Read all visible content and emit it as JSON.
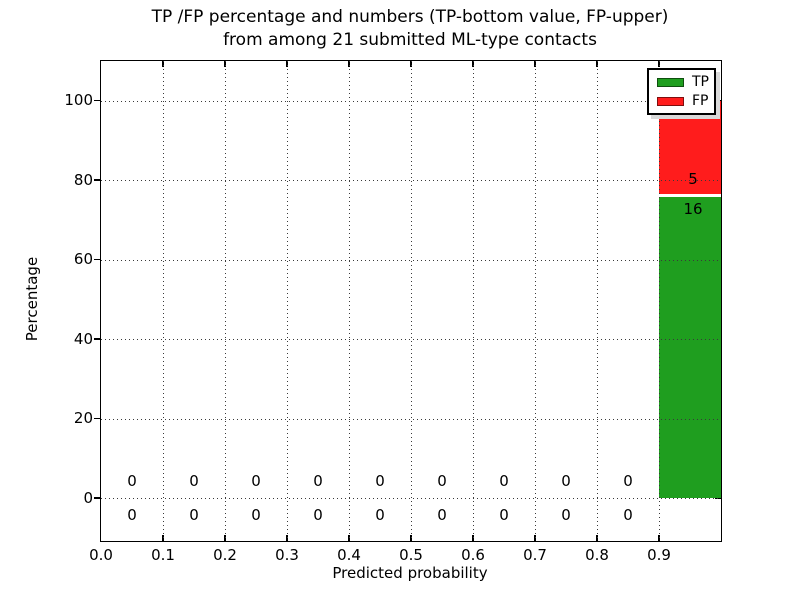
{
  "title": {
    "line1": "TP /FP percentage and numbers (TP-bottom value, FP-upper)",
    "line2": "from among 21 submitted ML-type contacts"
  },
  "axes": {
    "xlabel": "Predicted probability",
    "ylabel": "Percentage",
    "xlim": [
      0.0,
      1.0
    ],
    "ylim": [
      -10.8,
      110.0
    ],
    "xtick_values": [
      0.0,
      0.1,
      0.2,
      0.3,
      0.4,
      0.5,
      0.6,
      0.7,
      0.8,
      0.9
    ],
    "xtick_labels": [
      "0.0",
      "0.1",
      "0.2",
      "0.3",
      "0.4",
      "0.5",
      "0.6",
      "0.7",
      "0.8",
      "0.9"
    ],
    "ytick_values": [
      0,
      20,
      40,
      60,
      80,
      100
    ],
    "ytick_labels": [
      "0",
      "20",
      "40",
      "60",
      "80",
      "100"
    ],
    "grid_style": "dotted"
  },
  "legend": {
    "position": "upper-right",
    "items": [
      {
        "label": "TP",
        "color": "#1f9e1f"
      },
      {
        "label": "FP",
        "color": "#ff1c1c"
      }
    ]
  },
  "chart_data": {
    "type": "bar",
    "stacked": true,
    "title": "TP /FP percentage and numbers (TP-bottom value, FP-upper) from among 21 submitted ML-type contacts",
    "xlabel": "Predicted probability",
    "ylabel": "Percentage",
    "xlim": [
      0.0,
      1.0
    ],
    "ylim": [
      -10.8,
      110.0
    ],
    "grid": true,
    "legend_position": "upper-right",
    "total_contacts": 21,
    "bin_width": 0.1,
    "bin_centers": [
      0.05,
      0.15,
      0.25,
      0.35,
      0.45,
      0.55,
      0.65,
      0.75,
      0.85,
      0.95
    ],
    "series": [
      {
        "name": "TP",
        "color": "#1f9e1f",
        "counts": [
          0,
          0,
          0,
          0,
          0,
          0,
          0,
          0,
          0,
          16
        ],
        "percentages": [
          0,
          0,
          0,
          0,
          0,
          0,
          0,
          0,
          0,
          76.19
        ]
      },
      {
        "name": "FP",
        "color": "#ff1c1c",
        "counts": [
          0,
          0,
          0,
          0,
          0,
          0,
          0,
          0,
          0,
          5
        ],
        "percentages": [
          0,
          0,
          0,
          0,
          0,
          0,
          0,
          0,
          0,
          23.81
        ]
      }
    ],
    "annotation_note": "count labels per bin: TP value below/bottom, FP value above/upper"
  },
  "colors": {
    "tp_green": "#1f9e1f",
    "fp_red": "#ff1c1c",
    "spine": "#000000",
    "grid": "#3a3a3a",
    "background": "#ffffff",
    "separator": "#ffffff",
    "legend_shadow": "#d9d9d9"
  }
}
